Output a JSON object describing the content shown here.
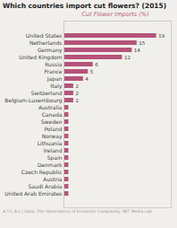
{
  "chart_data": {
    "type": "bar",
    "orientation": "horizontal",
    "title": "Which countries import cut flowers? (2015)",
    "xlabel": "Cut Flower Imports (%)",
    "annotations": [
      "A.T.C.A.S  |  Data: The Observatory of Economic Complexity, MIT Media Lab"
    ],
    "categories": [
      "United States",
      "Netherlands",
      "Germany",
      "United Kingdom",
      "Russia",
      "France",
      "Japan",
      "Italy",
      "Switzerland",
      "Belgium-Luxembourg",
      "Australia",
      "Canada",
      "Sweden",
      "Poland",
      "Norway",
      "Lithuania",
      "Ireland",
      "Spain",
      "Denmark",
      "Czech Republic",
      "Austria",
      "Saudi Arabia",
      "United Arab Emirates"
    ],
    "values": [
      19,
      15,
      14,
      12,
      6,
      5,
      4,
      2,
      2,
      2,
      1,
      1,
      1,
      1,
      1,
      1,
      1,
      1,
      1,
      1,
      1,
      1,
      1
    ],
    "value_labels": [
      "19",
      "15",
      "14",
      "12",
      "6",
      "5",
      "4",
      "2",
      "2",
      "2",
      null,
      null,
      null,
      null,
      null,
      null,
      null,
      null,
      null,
      null,
      null,
      null,
      null
    ],
    "data_labels": true,
    "color": "#b5547a",
    "xlim": [
      0,
      22
    ],
    "tick_labels": "y",
    "grid": false
  }
}
